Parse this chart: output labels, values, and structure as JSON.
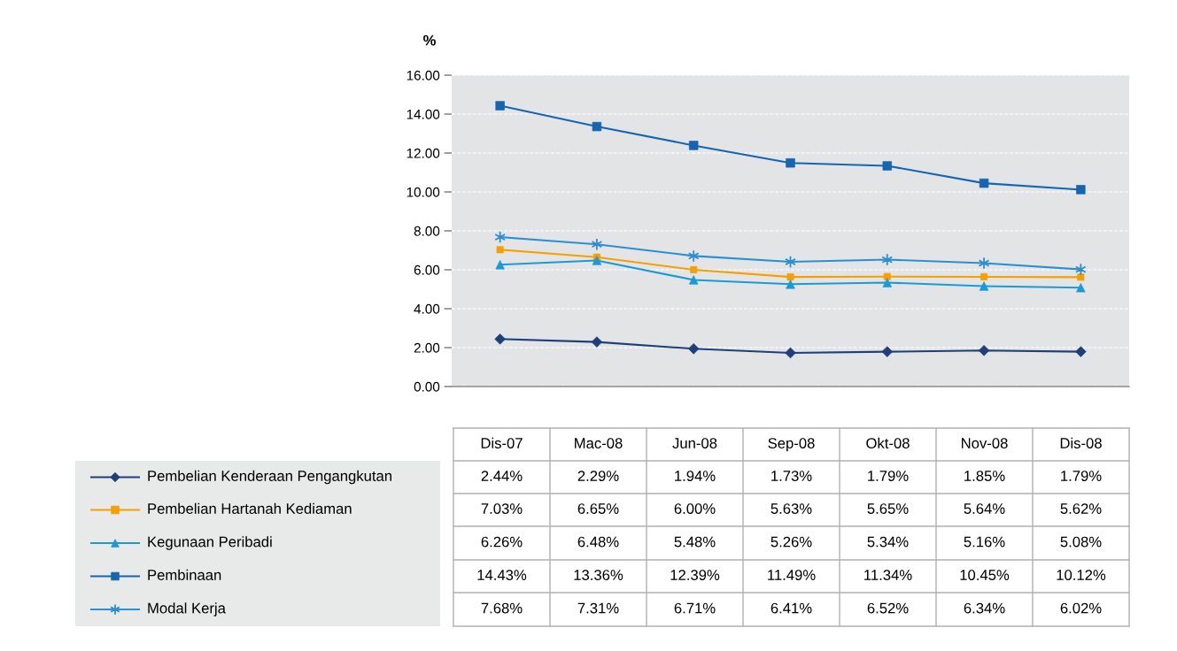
{
  "chart_data": {
    "type": "line",
    "ylabel": "%",
    "categories": [
      "Dis-07",
      "Mac-08",
      "Jun-08",
      "Sep-08",
      "Okt-08",
      "Nov-08",
      "Dis-08"
    ],
    "ylim": [
      0,
      16
    ],
    "yticks": [
      {
        "value": 0,
        "label": "0.00"
      },
      {
        "value": 2,
        "label": "2.00"
      },
      {
        "value": 4,
        "label": "4.00"
      },
      {
        "value": 6,
        "label": "6.00"
      },
      {
        "value": 8,
        "label": "8.00"
      },
      {
        "value": 10,
        "label": "10.00"
      },
      {
        "value": 12,
        "label": "12.00"
      },
      {
        "value": 14,
        "label": "14.00"
      },
      {
        "value": 16,
        "label": "16.00"
      }
    ],
    "tick_labels": "y",
    "grid": "y",
    "legend": "bottom left",
    "line_style": "solid",
    "series": [
      {
        "name": "Pembelian Kenderaan Pengangkutan",
        "color": "#1f3f7a",
        "marker": "diamond",
        "values": [
          2.44,
          2.29,
          1.94,
          1.73,
          1.79,
          1.85,
          1.79
        ],
        "value_labels": [
          "2.44%",
          "2.29%",
          "1.94%",
          "1.73%",
          "1.79%",
          "1.85%",
          "1.79%"
        ]
      },
      {
        "name": "Pembelian Hartanah Kediaman",
        "color": "#f5a000",
        "marker": "square",
        "values": [
          7.03,
          6.65,
          6.0,
          5.63,
          5.65,
          5.64,
          5.62
        ],
        "value_labels": [
          "7.03%",
          "6.65%",
          "6.00%",
          "5.63%",
          "5.65%",
          "5.64%",
          "5.62%"
        ]
      },
      {
        "name": "Kegunaan Peribadi",
        "color": "#1a9ad6",
        "marker": "triangle",
        "values": [
          6.26,
          6.48,
          5.48,
          5.26,
          5.34,
          5.16,
          5.08
        ],
        "value_labels": [
          "6.26%",
          "6.48%",
          "5.48%",
          "5.26%",
          "5.34%",
          "5.16%",
          "5.08%"
        ]
      },
      {
        "name": "Pembinaan",
        "color": "#1565b0",
        "marker": "square",
        "values": [
          14.43,
          13.36,
          12.39,
          11.49,
          11.34,
          10.45,
          10.12
        ],
        "value_labels": [
          "14.43%",
          "13.36%",
          "12.39%",
          "11.49%",
          "11.34%",
          "10.45%",
          "10.12%"
        ]
      },
      {
        "name": "Modal Kerja",
        "color": "#2b8fd1",
        "marker": "cross",
        "values": [
          7.68,
          7.31,
          6.71,
          6.41,
          6.52,
          6.34,
          6.02
        ],
        "value_labels": [
          "7.68%",
          "7.31%",
          "6.71%",
          "6.41%",
          "6.52%",
          "6.34%",
          "6.02%"
        ]
      }
    ]
  }
}
